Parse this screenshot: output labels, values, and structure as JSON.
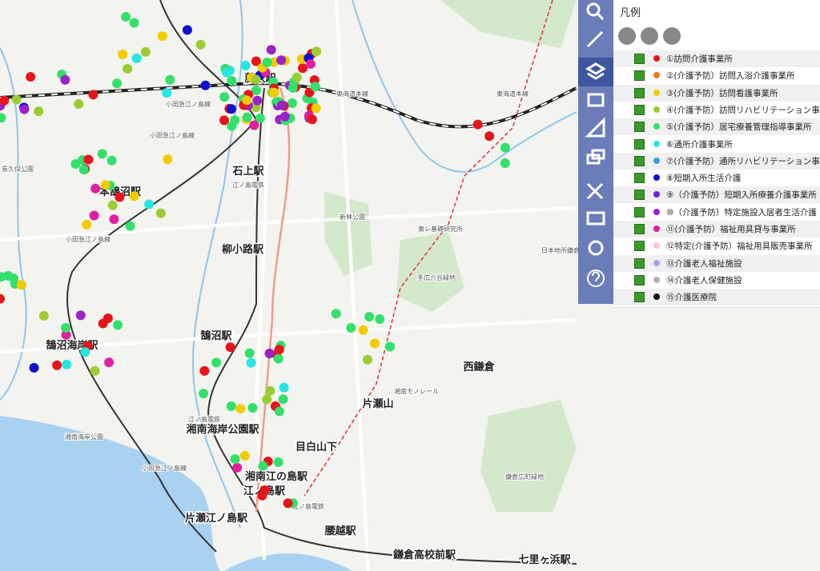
{
  "legend": {
    "title": "凡例",
    "items": [
      {
        "label": "①訪問介護事業所",
        "color": "#e8141b"
      },
      {
        "label": "②(介護予防）訪問入浴介護事業所",
        "color": "#f07a1e"
      },
      {
        "label": "③(介護予防）訪問看護事業所",
        "color": "#f2cc00"
      },
      {
        "label": "④(介護予防）訪問リハビリテーション事",
        "color": "#9acd32"
      },
      {
        "label": "⑤(介護予防）居宅療養管理指導事業所",
        "color": "#33e06a"
      },
      {
        "label": "⑥通所介護事業所",
        "color": "#26e6e0"
      },
      {
        "label": "⑦(介護予防）通所リハビリテーション事",
        "color": "#3a9ee0"
      },
      {
        "label": "⑧短期入所生活介護",
        "color": "#1010d0"
      },
      {
        "label": "⑨（介護予防）短期入所療養介護事業所",
        "color": "#6a20d8"
      },
      {
        "label": "⑩（介護予防）特定施設入居者生活介護",
        "color": "#9a22c8"
      },
      {
        "label": "⑪(介護予防）福祉用具貸与事業所",
        "color": "#e020a0"
      },
      {
        "label": "⑫特定(介護予防）福祉用具販売事業所",
        "color": "#f8c4e0"
      },
      {
        "label": "⑬介護老人福祉施設",
        "color": "#a4a4f4"
      },
      {
        "label": "⑭介護老人保健施設",
        "color": "#b0b0b0"
      },
      {
        "label": "⑮介護医療院",
        "color": "#111111"
      }
    ]
  },
  "map": {
    "stations": [
      "藤沢駅",
      "石上駅",
      "本鵠沼駅",
      "柳小路駅",
      "鵠沼駅",
      "鵠沼海岸駅",
      "湘南海岸公園駅",
      "目白山下",
      "片瀬山",
      "西鎌倉",
      "湘南江の島駅",
      "江ノ島駅",
      "片瀬江ノ島駅",
      "腰越駅",
      "鎌倉高校前駅",
      "七里ヶ浜駅"
    ],
    "places": [
      "東海道本線",
      "東海道本線",
      "小田急江ノ島線",
      "小田急江ノ島線",
      "小田急江ノ島線",
      "小田急江ノ島線",
      "江ノ島電鉄",
      "江ノ島電鉄",
      "江ノ島電鉄",
      "湘南モノレール",
      "新林公園",
      "手広六谷緑地",
      "鎌倉広町緑地",
      "湘南海岸公園",
      "東レ基礎研究所",
      "日本地所鎌倉",
      "長久保公園"
    ]
  }
}
